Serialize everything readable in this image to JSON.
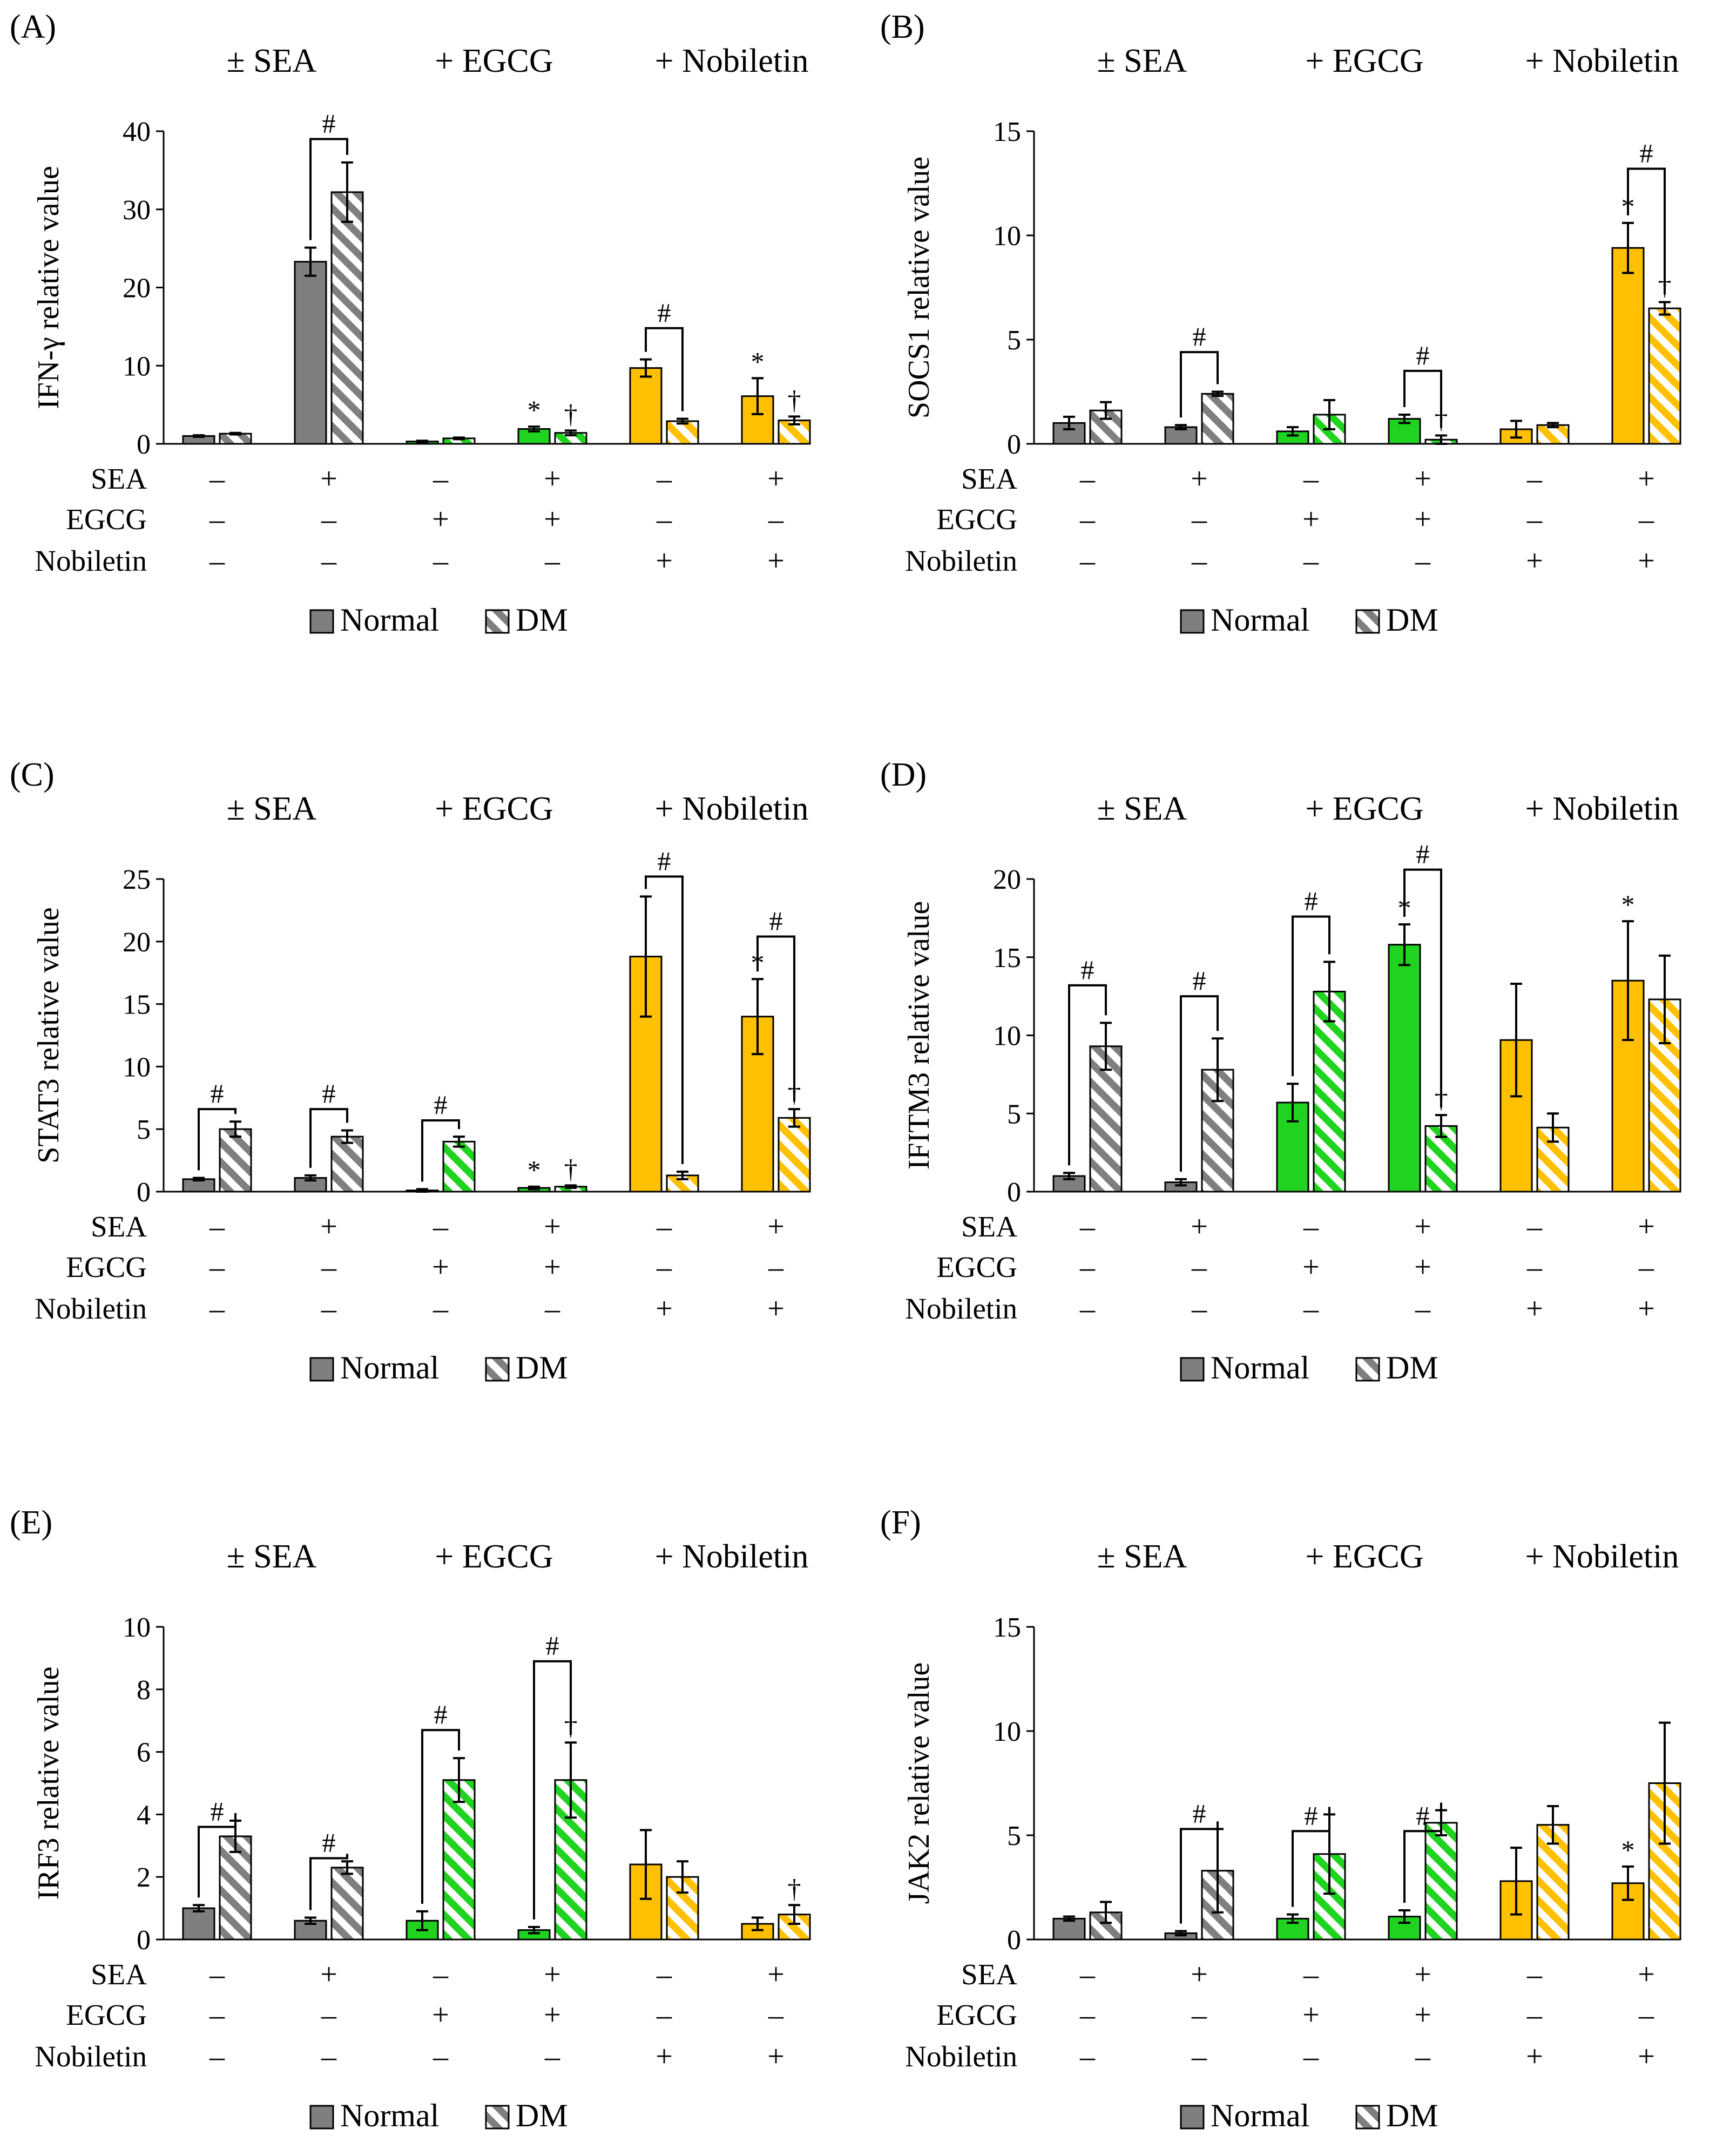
{
  "figure": {
    "group_titles": [
      "± SEA",
      "+ EGCG",
      "+ Nobiletin"
    ],
    "condition_rows": [
      {
        "label": "SEA",
        "signs": [
          "–",
          "+",
          "–",
          "+",
          "–",
          "+"
        ]
      },
      {
        "label": "EGCG",
        "signs": [
          "–",
          "–",
          "+",
          "+",
          "–",
          "–"
        ]
      },
      {
        "label": "Nobiletin",
        "signs": [
          "–",
          "–",
          "–",
          "–",
          "+",
          "+"
        ]
      }
    ],
    "legend": {
      "normal": "Normal",
      "dm": "DM"
    },
    "colors": {
      "control": "#7f7f7f",
      "egcg": "#21d321",
      "nobiletin": "#ffc000"
    }
  },
  "chart_data": [
    {
      "panel": "(A)",
      "type": "bar",
      "ylabel": "IFN-γ relative value",
      "ylim": [
        0,
        40
      ],
      "yticks": [
        "0",
        "10",
        "20",
        "30",
        "40"
      ],
      "series": [
        {
          "name": "Normal",
          "values": [
            1.0,
            23.3,
            0.3,
            1.9,
            9.7,
            6.1
          ],
          "errors": [
            0.1,
            1.8,
            0.1,
            0.3,
            1.1,
            2.3
          ]
        },
        {
          "name": "DM",
          "values": [
            1.3,
            32.2,
            0.7,
            1.4,
            2.9,
            3.0
          ],
          "errors": [
            0.1,
            3.8,
            0.1,
            0.3,
            0.3,
            0.5
          ]
        }
      ],
      "comparisons": [
        {
          "group": 1,
          "symbol": "#",
          "y": 39
        },
        {
          "group": 4,
          "symbol": "#",
          "y": 14.8
        }
      ],
      "marks": [
        {
          "group": 3,
          "bar": 0,
          "symbol": "*"
        },
        {
          "group": 3,
          "bar": 1,
          "symbol": "†"
        },
        {
          "group": 5,
          "bar": 0,
          "symbol": "*"
        },
        {
          "group": 5,
          "bar": 1,
          "symbol": "†"
        }
      ]
    },
    {
      "panel": "(B)",
      "type": "bar",
      "ylabel": "SOCS1 relative value",
      "ylim": [
        0,
        15
      ],
      "yticks": [
        "0",
        "5",
        "10",
        "15"
      ],
      "series": [
        {
          "name": "Normal",
          "values": [
            1.0,
            0.8,
            0.6,
            1.2,
            0.7,
            9.4
          ],
          "errors": [
            0.3,
            0.1,
            0.2,
            0.2,
            0.4,
            1.2
          ]
        },
        {
          "name": "DM",
          "values": [
            1.6,
            2.4,
            1.4,
            0.2,
            0.9,
            6.5
          ],
          "errors": [
            0.4,
            0.1,
            0.7,
            0.2,
            0.1,
            0.3
          ]
        }
      ],
      "comparisons": [
        {
          "group": 1,
          "symbol": "#",
          "y": 4.4
        },
        {
          "group": 3,
          "symbol": "#",
          "y": 3.5
        },
        {
          "group": 5,
          "symbol": "#",
          "y": 13.2
        }
      ],
      "marks": [
        {
          "group": 3,
          "bar": 1,
          "symbol": "†"
        },
        {
          "group": 5,
          "bar": 0,
          "symbol": "*"
        },
        {
          "group": 5,
          "bar": 1,
          "symbol": "†"
        }
      ]
    },
    {
      "panel": "(C)",
      "type": "bar",
      "ylabel": "STAT3 relative value",
      "ylim": [
        0,
        25
      ],
      "yticks": [
        "0",
        "5",
        "10",
        "15",
        "20",
        "25"
      ],
      "series": [
        {
          "name": "Normal",
          "values": [
            1.0,
            1.1,
            0.1,
            0.3,
            18.8,
            14.0
          ],
          "errors": [
            0.1,
            0.2,
            0.1,
            0.1,
            4.8,
            3.0
          ]
        },
        {
          "name": "DM",
          "values": [
            5.0,
            4.4,
            4.0,
            0.4,
            1.3,
            5.9
          ],
          "errors": [
            0.6,
            0.5,
            0.4,
            0.1,
            0.3,
            0.7
          ]
        }
      ],
      "comparisons": [
        {
          "group": 0,
          "symbol": "#",
          "y": 6.6
        },
        {
          "group": 1,
          "symbol": "#",
          "y": 6.6
        },
        {
          "group": 2,
          "symbol": "#",
          "y": 5.7
        },
        {
          "group": 4,
          "symbol": "#",
          "y": 25.2
        },
        {
          "group": 5,
          "symbol": "#",
          "y": 20.4
        }
      ],
      "marks": [
        {
          "group": 3,
          "bar": 0,
          "symbol": "*"
        },
        {
          "group": 3,
          "bar": 1,
          "symbol": "†"
        },
        {
          "group": 5,
          "bar": 0,
          "symbol": "*"
        },
        {
          "group": 5,
          "bar": 1,
          "symbol": "†"
        }
      ]
    },
    {
      "panel": "(D)",
      "type": "bar",
      "ylabel": "IFITM3 relative value",
      "ylim": [
        0,
        20
      ],
      "yticks": [
        "0",
        "5",
        "10",
        "15",
        "20"
      ],
      "series": [
        {
          "name": "Normal",
          "values": [
            1.0,
            0.6,
            5.7,
            15.8,
            9.7,
            13.5
          ],
          "errors": [
            0.2,
            0.2,
            1.2,
            1.3,
            3.6,
            3.8
          ]
        },
        {
          "name": "DM",
          "values": [
            9.3,
            7.8,
            12.8,
            4.2,
            4.1,
            12.3
          ],
          "errors": [
            1.5,
            2.0,
            1.9,
            0.7,
            0.9,
            2.8
          ]
        }
      ],
      "comparisons": [
        {
          "group": 0,
          "symbol": "#",
          "y": 13.2
        },
        {
          "group": 1,
          "symbol": "#",
          "y": 12.5
        },
        {
          "group": 2,
          "symbol": "#",
          "y": 17.6
        },
        {
          "group": 3,
          "symbol": "#",
          "y": 20.6
        }
      ],
      "marks": [
        {
          "group": 3,
          "bar": 0,
          "symbol": "*"
        },
        {
          "group": 3,
          "bar": 1,
          "symbol": "†"
        },
        {
          "group": 5,
          "bar": 0,
          "symbol": "*"
        }
      ]
    },
    {
      "panel": "(E)",
      "type": "bar",
      "ylabel": "IRF3 relative value",
      "ylim": [
        0,
        10
      ],
      "yticks": [
        "0",
        "2",
        "4",
        "6",
        "8",
        "10"
      ],
      "series": [
        {
          "name": "Normal",
          "values": [
            1.0,
            0.6,
            0.6,
            0.3,
            2.4,
            0.5
          ],
          "errors": [
            0.1,
            0.1,
            0.3,
            0.1,
            1.1,
            0.2
          ]
        },
        {
          "name": "DM",
          "values": [
            3.3,
            2.3,
            5.1,
            5.1,
            2.0,
            0.8
          ],
          "errors": [
            0.5,
            0.2,
            0.7,
            1.2,
            0.5,
            0.3
          ]
        }
      ],
      "comparisons": [
        {
          "group": 0,
          "symbol": "#",
          "y": 3.6
        },
        {
          "group": 1,
          "symbol": "#",
          "y": 2.6
        },
        {
          "group": 2,
          "symbol": "#",
          "y": 6.7
        },
        {
          "group": 3,
          "symbol": "#",
          "y": 8.9
        }
      ],
      "marks": [
        {
          "group": 3,
          "bar": 1,
          "symbol": "†"
        },
        {
          "group": 5,
          "bar": 1,
          "symbol": "†"
        }
      ]
    },
    {
      "panel": "(F)",
      "type": "bar",
      "ylabel": "JAK2 relative value",
      "ylim": [
        0,
        15
      ],
      "yticks": [
        "0",
        "5",
        "10",
        "15"
      ],
      "series": [
        {
          "name": "Normal",
          "values": [
            1.0,
            0.3,
            1.0,
            1.1,
            2.8,
            2.7
          ],
          "errors": [
            0.1,
            0.1,
            0.2,
            0.3,
            1.6,
            0.8
          ]
        },
        {
          "name": "DM",
          "values": [
            1.3,
            3.3,
            4.1,
            5.6,
            5.5,
            7.5
          ],
          "errors": [
            0.5,
            2.0,
            1.9,
            0.6,
            0.9,
            2.9
          ]
        }
      ],
      "comparisons": [
        {
          "group": 1,
          "symbol": "#",
          "y": 5.3
        },
        {
          "group": 2,
          "symbol": "#",
          "y": 5.2
        },
        {
          "group": 3,
          "symbol": "#",
          "y": 5.2
        }
      ],
      "marks": [
        {
          "group": 5,
          "bar": 0,
          "symbol": "*"
        }
      ]
    }
  ]
}
